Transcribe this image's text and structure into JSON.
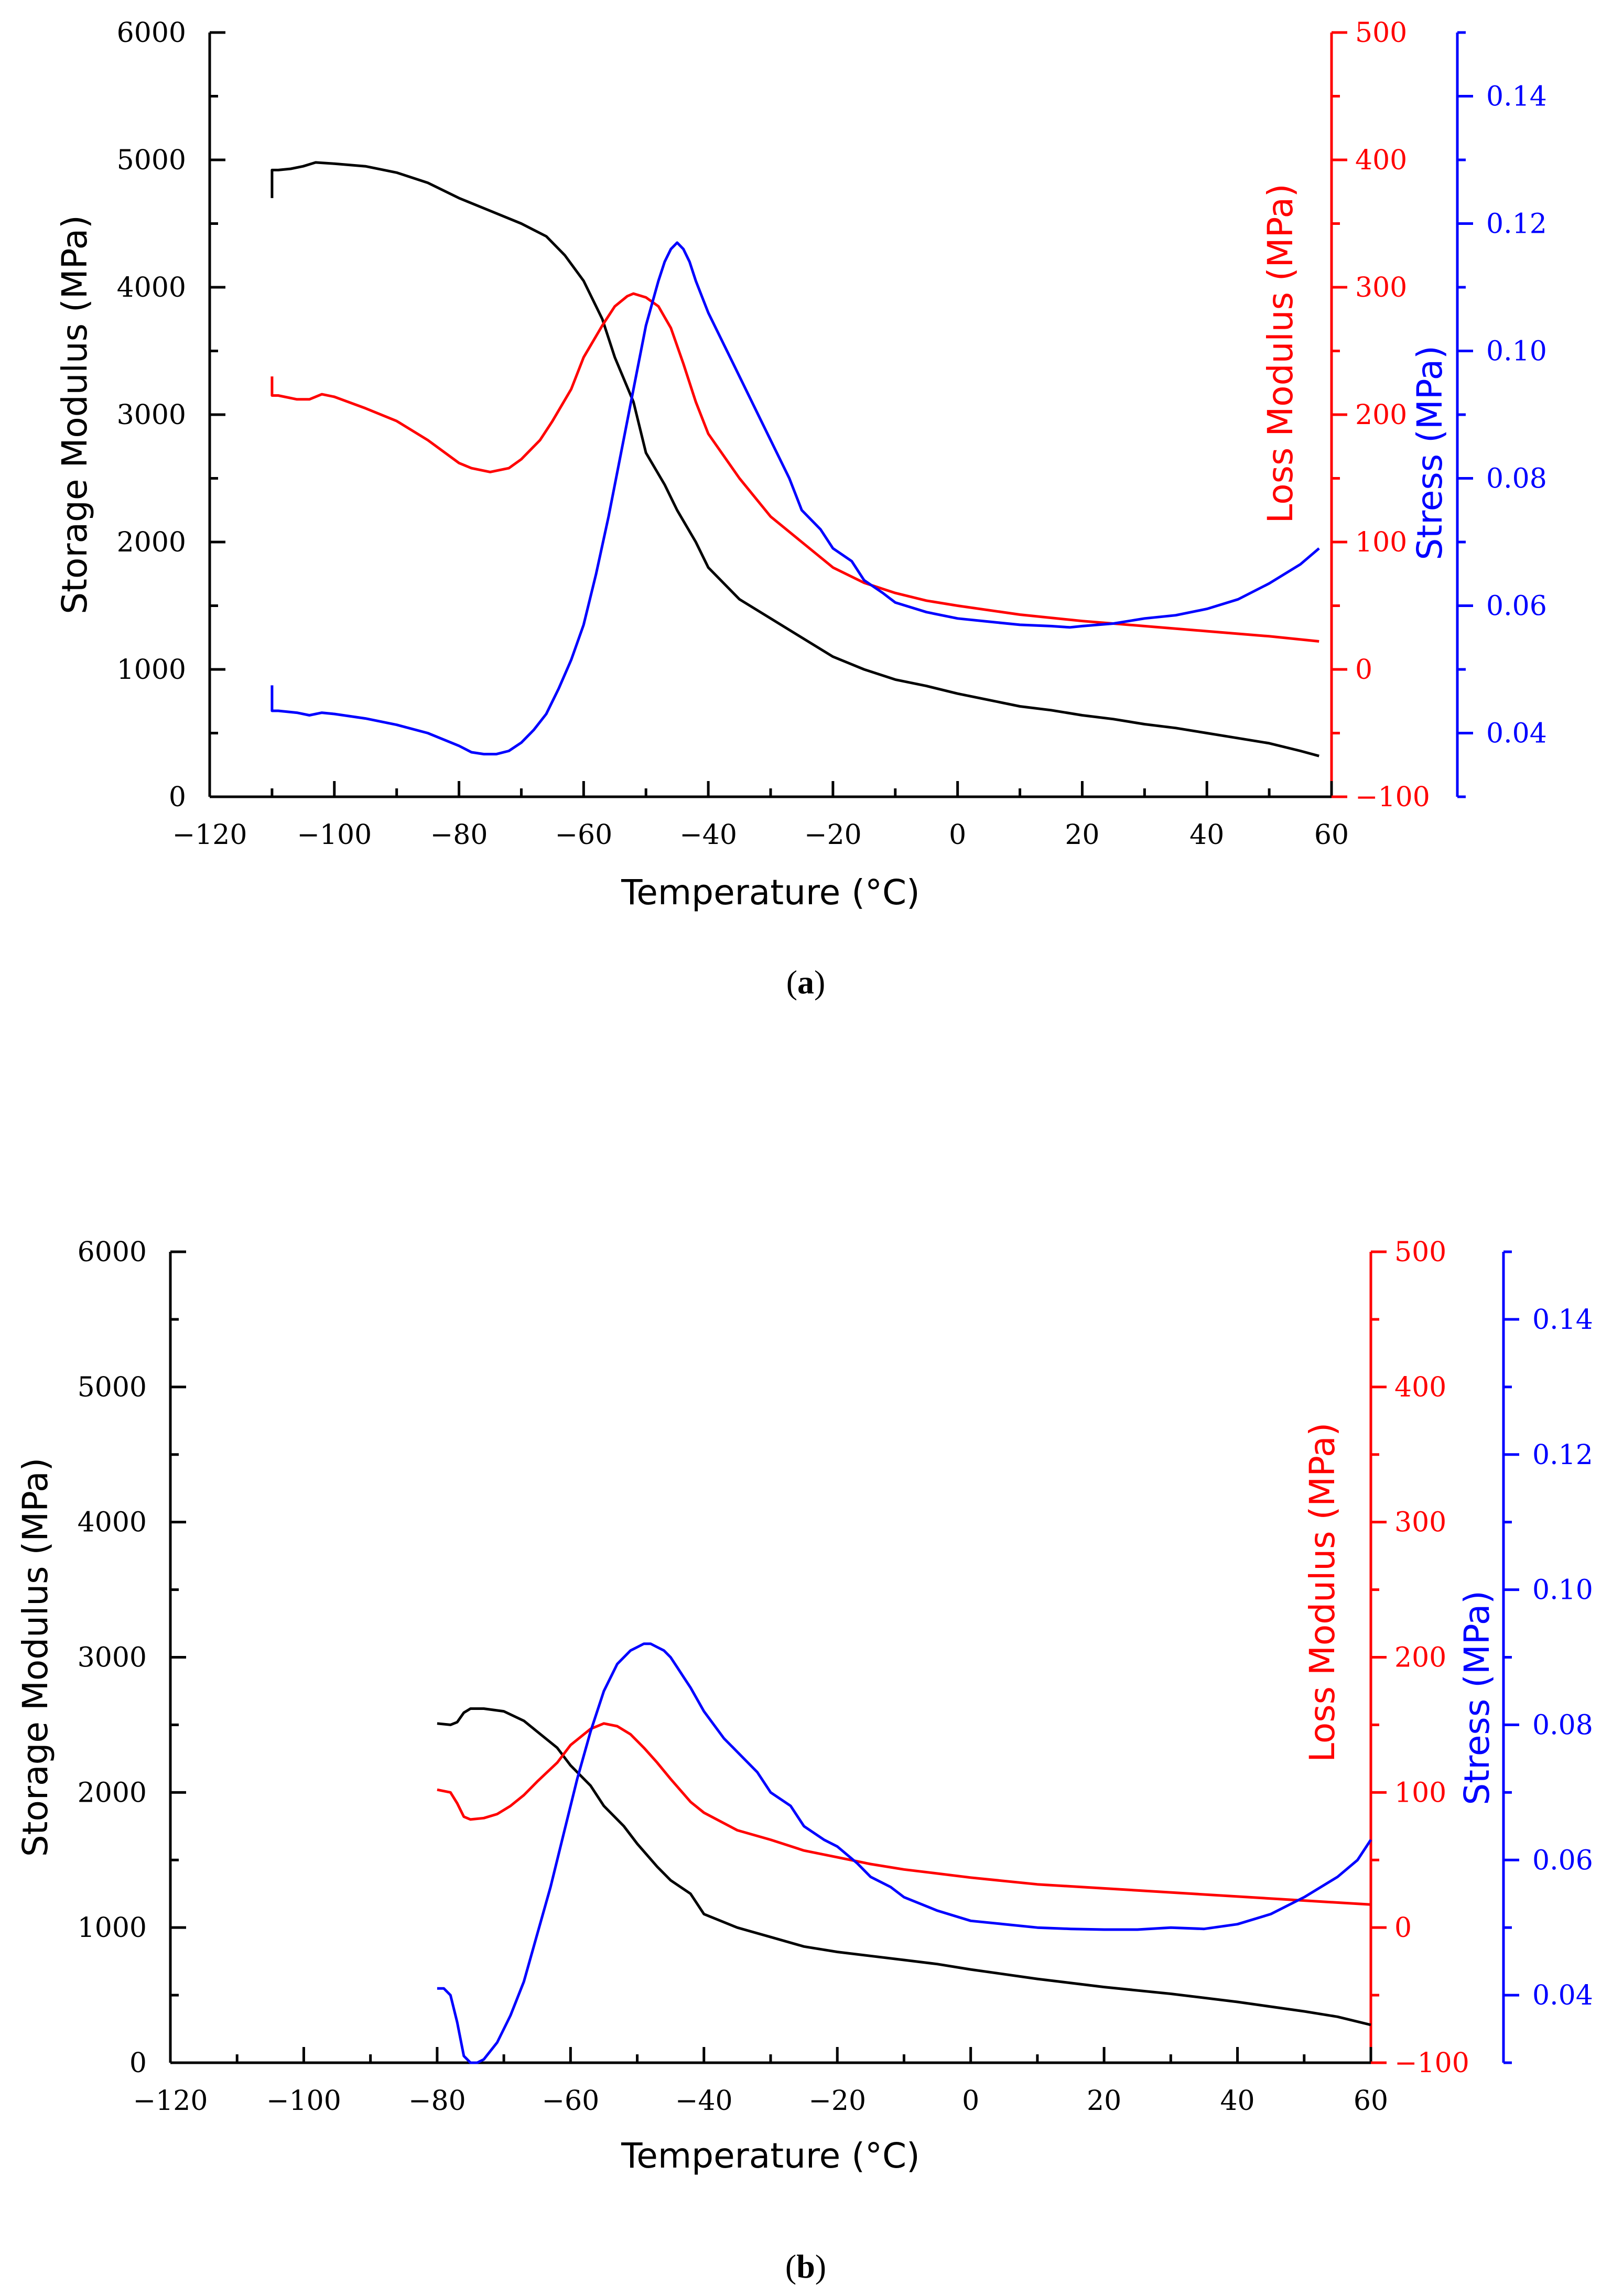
{
  "colors": {
    "storage": "#000000",
    "loss": "#ff0000",
    "stress": "#0000ff"
  },
  "chart_data": [
    {
      "type": "line",
      "caption_open": "(",
      "caption_letter": "a",
      "caption_close": ")",
      "xlabel": "Temperature (°C)",
      "ylabel_left": "Storage Modulus (MPa)",
      "ylabel_right1": "Loss Modulus (MPa)",
      "ylabel_right2": "Stress (MPa)",
      "xlim": [
        -120,
        60
      ],
      "xticks": [
        -120,
        -100,
        -80,
        -60,
        -40,
        -20,
        0,
        20,
        40,
        60
      ],
      "xtick_labels": [
        "−120",
        "−100",
        "−80",
        "−60",
        "−40",
        "−20",
        "0",
        "20",
        "40",
        "60"
      ],
      "y1lim": [
        0,
        6000
      ],
      "y1ticks": [
        0,
        1000,
        2000,
        3000,
        4000,
        5000,
        6000
      ],
      "y1tick_labels": [
        "0",
        "1000",
        "2000",
        "3000",
        "4000",
        "5000",
        "6000"
      ],
      "y2lim": [
        -100,
        500
      ],
      "y2ticks": [
        -100,
        0,
        100,
        200,
        300,
        400,
        500
      ],
      "y2tick_labels": [
        "−100",
        "0",
        "100",
        "200",
        "300",
        "400",
        "500"
      ],
      "y3lim": [
        0.03,
        0.15
      ],
      "y3ticks": [
        0.04,
        0.06,
        0.08,
        0.1,
        0.12,
        0.14
      ],
      "y3tick_labels": [
        "0.04",
        "0.06",
        "0.08",
        "0.10",
        "0.12",
        "0.14"
      ],
      "series": [
        {
          "name": "Storage Modulus",
          "axis": "left",
          "color": "#000000",
          "x": [
            -110,
            -110,
            -109,
            -107,
            -105,
            -103,
            -100,
            -95,
            -90,
            -85,
            -80,
            -75,
            -70,
            -66,
            -63,
            -60,
            -57,
            -55,
            -52,
            -50,
            -47,
            -45,
            -42,
            -40,
            -35,
            -30,
            -25,
            -20,
            -15,
            -10,
            -5,
            0,
            5,
            10,
            15,
            20,
            25,
            30,
            35,
            40,
            45,
            50,
            55,
            58
          ],
          "values": [
            4700,
            4920,
            4920,
            4930,
            4950,
            4980,
            4970,
            4950,
            4900,
            4820,
            4700,
            4600,
            4500,
            4400,
            4250,
            4050,
            3750,
            3450,
            3100,
            2700,
            2450,
            2250,
            2000,
            1800,
            1550,
            1400,
            1250,
            1100,
            1000,
            920,
            870,
            810,
            760,
            710,
            680,
            640,
            610,
            570,
            540,
            500,
            460,
            420,
            360,
            320
          ]
        },
        {
          "name": "Loss Modulus",
          "axis": "right1",
          "color": "#ff0000",
          "x": [
            -110,
            -110,
            -109,
            -106,
            -104,
            -102,
            -100,
            -95,
            -90,
            -85,
            -80,
            -78,
            -75,
            -72,
            -70,
            -67,
            -65,
            -62,
            -60,
            -57,
            -55,
            -53,
            -52,
            -50,
            -48,
            -46,
            -44,
            -42,
            -40,
            -35,
            -30,
            -25,
            -20,
            -15,
            -10,
            -5,
            0,
            10,
            20,
            30,
            40,
            50,
            58
          ],
          "values": [
            230,
            215,
            215,
            212,
            212,
            216,
            214,
            205,
            195,
            180,
            162,
            158,
            155,
            158,
            165,
            180,
            195,
            220,
            245,
            270,
            285,
            293,
            295,
            292,
            285,
            268,
            240,
            210,
            185,
            150,
            120,
            100,
            80,
            68,
            60,
            54,
            50,
            43,
            38,
            34,
            30,
            26,
            22
          ]
        },
        {
          "name": "Stress",
          "axis": "right2",
          "color": "#0000ff",
          "x": [
            -110,
            -110,
            -109,
            -106,
            -104,
            -102,
            -100,
            -95,
            -90,
            -85,
            -80,
            -78,
            -76,
            -74,
            -72,
            -70,
            -68,
            -66,
            -64,
            -62,
            -60,
            -58,
            -56,
            -54,
            -52,
            -50,
            -48,
            -47,
            -46,
            -45,
            -44,
            -43,
            -42,
            -40,
            -37,
            -35,
            -32,
            -30,
            -27,
            -25,
            -22,
            -20,
            -17,
            -15,
            -12,
            -10,
            -5,
            0,
            5,
            10,
            15,
            18,
            20,
            25,
            30,
            35,
            40,
            45,
            50,
            55,
            58
          ],
          "values": [
            0.0475,
            0.0435,
            0.0435,
            0.0432,
            0.0428,
            0.0432,
            0.043,
            0.0423,
            0.0413,
            0.04,
            0.038,
            0.037,
            0.0367,
            0.0367,
            0.0372,
            0.0385,
            0.0405,
            0.043,
            0.047,
            0.0515,
            0.057,
            0.065,
            0.074,
            0.084,
            0.094,
            0.104,
            0.111,
            0.114,
            0.116,
            0.117,
            0.116,
            0.114,
            0.111,
            0.106,
            0.1,
            0.096,
            0.09,
            0.086,
            0.08,
            0.075,
            0.072,
            0.069,
            0.067,
            0.064,
            0.062,
            0.0605,
            0.059,
            0.058,
            0.0575,
            0.057,
            0.0568,
            0.0566,
            0.0568,
            0.0572,
            0.058,
            0.0585,
            0.0595,
            0.061,
            0.0635,
            0.0665,
            0.069
          ]
        }
      ]
    },
    {
      "type": "line",
      "caption_open": "(",
      "caption_letter": "b",
      "caption_close": ")",
      "xlabel": "Temperature (°C)",
      "ylabel_left": "Storage Modulus (MPa)",
      "ylabel_right1": "Loss Modulus (MPa)",
      "ylabel_right2": "Stress (MPa)",
      "xlim": [
        -120,
        60
      ],
      "xticks": [
        -120,
        -100,
        -80,
        -60,
        -40,
        -20,
        0,
        20,
        40,
        60
      ],
      "xtick_labels": [
        "−120",
        "−100",
        "−80",
        "−60",
        "−40",
        "−20",
        "0",
        "20",
        "40",
        "60"
      ],
      "y1lim": [
        0,
        6000
      ],
      "y1ticks": [
        0,
        1000,
        2000,
        3000,
        4000,
        5000,
        6000
      ],
      "y1tick_labels": [
        "0",
        "1000",
        "2000",
        "3000",
        "4000",
        "5000",
        "6000"
      ],
      "y2lim": [
        -100,
        500
      ],
      "y2ticks": [
        -100,
        0,
        100,
        200,
        300,
        400,
        500
      ],
      "y2tick_labels": [
        "−100",
        "0",
        "100",
        "200",
        "300",
        "400",
        "500"
      ],
      "y3lim": [
        0.03,
        0.15
      ],
      "y3ticks": [
        0.04,
        0.06,
        0.08,
        0.1,
        0.12,
        0.14
      ],
      "y3tick_labels": [
        "0.04",
        "0.06",
        "0.08",
        "0.10",
        "0.12",
        "0.14"
      ],
      "series": [
        {
          "name": "Storage Modulus",
          "axis": "left",
          "color": "#000000",
          "x": [
            -80,
            -78,
            -77,
            -76,
            -75,
            -73,
            -70,
            -67,
            -65,
            -62,
            -60,
            -57,
            -55,
            -52,
            -50,
            -47,
            -45,
            -42,
            -40,
            -35,
            -30,
            -25,
            -20,
            -15,
            -10,
            -5,
            0,
            10,
            20,
            30,
            40,
            50,
            55,
            60
          ],
          "values": [
            2510,
            2500,
            2520,
            2590,
            2620,
            2620,
            2600,
            2530,
            2450,
            2330,
            2200,
            2050,
            1900,
            1750,
            1620,
            1450,
            1350,
            1250,
            1100,
            1000,
            930,
            860,
            820,
            790,
            760,
            730,
            690,
            620,
            560,
            510,
            450,
            380,
            340,
            280
          ]
        },
        {
          "name": "Loss Modulus",
          "axis": "right1",
          "color": "#ff0000",
          "x": [
            -80,
            -78,
            -77,
            -76,
            -75,
            -73,
            -71,
            -69,
            -67,
            -65,
            -62,
            -60,
            -57,
            -55,
            -53,
            -51,
            -49,
            -47,
            -45,
            -42,
            -40,
            -35,
            -30,
            -25,
            -20,
            -15,
            -10,
            -5,
            0,
            10,
            20,
            30,
            40,
            50,
            60
          ],
          "values": [
            102,
            100,
            92,
            82,
            80,
            81,
            84,
            90,
            98,
            108,
            122,
            135,
            147,
            151,
            149,
            143,
            133,
            122,
            110,
            93,
            85,
            72,
            65,
            57,
            52,
            47,
            43,
            40,
            37,
            32,
            29,
            26,
            23,
            20,
            17
          ]
        },
        {
          "name": "Stress",
          "axis": "right2",
          "color": "#0000ff",
          "x": [
            -80,
            -79,
            -78,
            -77,
            -76,
            -75,
            -74,
            -73,
            -71,
            -69,
            -67,
            -65,
            -63,
            -61,
            -59,
            -57,
            -55,
            -53,
            -51,
            -50,
            -49,
            -48,
            -47,
            -46,
            -45,
            -44,
            -43,
            -42,
            -40,
            -37,
            -35,
            -32,
            -30,
            -27,
            -25,
            -22,
            -20,
            -17,
            -15,
            -12,
            -10,
            -5,
            0,
            5,
            10,
            15,
            20,
            25,
            30,
            35,
            40,
            45,
            50,
            55,
            58,
            60
          ],
          "values": [
            0.041,
            0.041,
            0.04,
            0.036,
            0.031,
            0.03,
            0.03,
            0.0305,
            0.033,
            0.037,
            0.042,
            0.049,
            0.056,
            0.064,
            0.072,
            0.079,
            0.085,
            0.089,
            0.091,
            0.0915,
            0.092,
            0.092,
            0.0915,
            0.091,
            0.09,
            0.0885,
            0.087,
            0.0855,
            0.082,
            0.078,
            0.076,
            0.073,
            0.07,
            0.068,
            0.065,
            0.063,
            0.062,
            0.0595,
            0.0575,
            0.056,
            0.0545,
            0.0525,
            0.051,
            0.0505,
            0.05,
            0.0498,
            0.0497,
            0.0497,
            0.05,
            0.0498,
            0.0505,
            0.052,
            0.0545,
            0.0575,
            0.06,
            0.063
          ]
        }
      ]
    }
  ]
}
